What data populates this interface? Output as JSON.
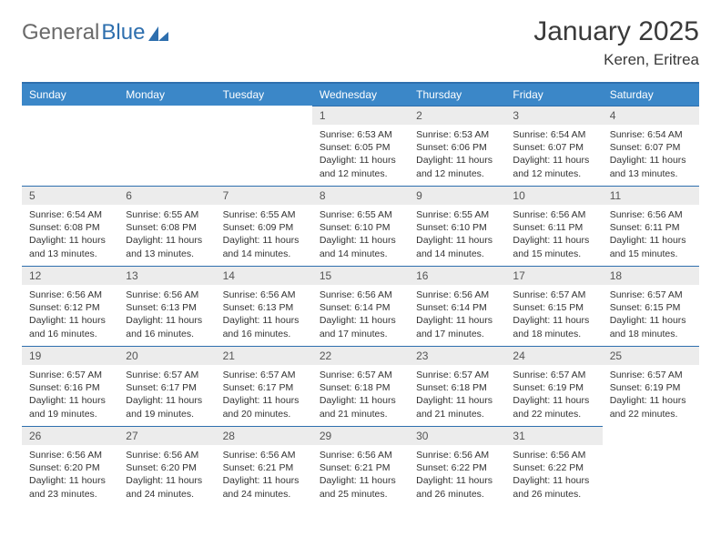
{
  "logo": {
    "text1": "General",
    "text2": "Blue"
  },
  "title": "January 2025",
  "location": "Keren, Eritrea",
  "colors": {
    "header_bg": "#3b87c8",
    "header_border": "#2e6fae",
    "daynum_bg": "#ececec",
    "text": "#333333"
  },
  "day_headers": [
    "Sunday",
    "Monday",
    "Tuesday",
    "Wednesday",
    "Thursday",
    "Friday",
    "Saturday"
  ],
  "weeks": [
    [
      null,
      null,
      null,
      {
        "n": "1",
        "sr": "Sunrise: 6:53 AM",
        "ss": "Sunset: 6:05 PM",
        "dl": "Daylight: 11 hours and 12 minutes."
      },
      {
        "n": "2",
        "sr": "Sunrise: 6:53 AM",
        "ss": "Sunset: 6:06 PM",
        "dl": "Daylight: 11 hours and 12 minutes."
      },
      {
        "n": "3",
        "sr": "Sunrise: 6:54 AM",
        "ss": "Sunset: 6:07 PM",
        "dl": "Daylight: 11 hours and 12 minutes."
      },
      {
        "n": "4",
        "sr": "Sunrise: 6:54 AM",
        "ss": "Sunset: 6:07 PM",
        "dl": "Daylight: 11 hours and 13 minutes."
      }
    ],
    [
      {
        "n": "5",
        "sr": "Sunrise: 6:54 AM",
        "ss": "Sunset: 6:08 PM",
        "dl": "Daylight: 11 hours and 13 minutes."
      },
      {
        "n": "6",
        "sr": "Sunrise: 6:55 AM",
        "ss": "Sunset: 6:08 PM",
        "dl": "Daylight: 11 hours and 13 minutes."
      },
      {
        "n": "7",
        "sr": "Sunrise: 6:55 AM",
        "ss": "Sunset: 6:09 PM",
        "dl": "Daylight: 11 hours and 14 minutes."
      },
      {
        "n": "8",
        "sr": "Sunrise: 6:55 AM",
        "ss": "Sunset: 6:10 PM",
        "dl": "Daylight: 11 hours and 14 minutes."
      },
      {
        "n": "9",
        "sr": "Sunrise: 6:55 AM",
        "ss": "Sunset: 6:10 PM",
        "dl": "Daylight: 11 hours and 14 minutes."
      },
      {
        "n": "10",
        "sr": "Sunrise: 6:56 AM",
        "ss": "Sunset: 6:11 PM",
        "dl": "Daylight: 11 hours and 15 minutes."
      },
      {
        "n": "11",
        "sr": "Sunrise: 6:56 AM",
        "ss": "Sunset: 6:11 PM",
        "dl": "Daylight: 11 hours and 15 minutes."
      }
    ],
    [
      {
        "n": "12",
        "sr": "Sunrise: 6:56 AM",
        "ss": "Sunset: 6:12 PM",
        "dl": "Daylight: 11 hours and 16 minutes."
      },
      {
        "n": "13",
        "sr": "Sunrise: 6:56 AM",
        "ss": "Sunset: 6:13 PM",
        "dl": "Daylight: 11 hours and 16 minutes."
      },
      {
        "n": "14",
        "sr": "Sunrise: 6:56 AM",
        "ss": "Sunset: 6:13 PM",
        "dl": "Daylight: 11 hours and 16 minutes."
      },
      {
        "n": "15",
        "sr": "Sunrise: 6:56 AM",
        "ss": "Sunset: 6:14 PM",
        "dl": "Daylight: 11 hours and 17 minutes."
      },
      {
        "n": "16",
        "sr": "Sunrise: 6:56 AM",
        "ss": "Sunset: 6:14 PM",
        "dl": "Daylight: 11 hours and 17 minutes."
      },
      {
        "n": "17",
        "sr": "Sunrise: 6:57 AM",
        "ss": "Sunset: 6:15 PM",
        "dl": "Daylight: 11 hours and 18 minutes."
      },
      {
        "n": "18",
        "sr": "Sunrise: 6:57 AM",
        "ss": "Sunset: 6:15 PM",
        "dl": "Daylight: 11 hours and 18 minutes."
      }
    ],
    [
      {
        "n": "19",
        "sr": "Sunrise: 6:57 AM",
        "ss": "Sunset: 6:16 PM",
        "dl": "Daylight: 11 hours and 19 minutes."
      },
      {
        "n": "20",
        "sr": "Sunrise: 6:57 AM",
        "ss": "Sunset: 6:17 PM",
        "dl": "Daylight: 11 hours and 19 minutes."
      },
      {
        "n": "21",
        "sr": "Sunrise: 6:57 AM",
        "ss": "Sunset: 6:17 PM",
        "dl": "Daylight: 11 hours and 20 minutes."
      },
      {
        "n": "22",
        "sr": "Sunrise: 6:57 AM",
        "ss": "Sunset: 6:18 PM",
        "dl": "Daylight: 11 hours and 21 minutes."
      },
      {
        "n": "23",
        "sr": "Sunrise: 6:57 AM",
        "ss": "Sunset: 6:18 PM",
        "dl": "Daylight: 11 hours and 21 minutes."
      },
      {
        "n": "24",
        "sr": "Sunrise: 6:57 AM",
        "ss": "Sunset: 6:19 PM",
        "dl": "Daylight: 11 hours and 22 minutes."
      },
      {
        "n": "25",
        "sr": "Sunrise: 6:57 AM",
        "ss": "Sunset: 6:19 PM",
        "dl": "Daylight: 11 hours and 22 minutes."
      }
    ],
    [
      {
        "n": "26",
        "sr": "Sunrise: 6:56 AM",
        "ss": "Sunset: 6:20 PM",
        "dl": "Daylight: 11 hours and 23 minutes."
      },
      {
        "n": "27",
        "sr": "Sunrise: 6:56 AM",
        "ss": "Sunset: 6:20 PM",
        "dl": "Daylight: 11 hours and 24 minutes."
      },
      {
        "n": "28",
        "sr": "Sunrise: 6:56 AM",
        "ss": "Sunset: 6:21 PM",
        "dl": "Daylight: 11 hours and 24 minutes."
      },
      {
        "n": "29",
        "sr": "Sunrise: 6:56 AM",
        "ss": "Sunset: 6:21 PM",
        "dl": "Daylight: 11 hours and 25 minutes."
      },
      {
        "n": "30",
        "sr": "Sunrise: 6:56 AM",
        "ss": "Sunset: 6:22 PM",
        "dl": "Daylight: 11 hours and 26 minutes."
      },
      {
        "n": "31",
        "sr": "Sunrise: 6:56 AM",
        "ss": "Sunset: 6:22 PM",
        "dl": "Daylight: 11 hours and 26 minutes."
      },
      null
    ]
  ]
}
